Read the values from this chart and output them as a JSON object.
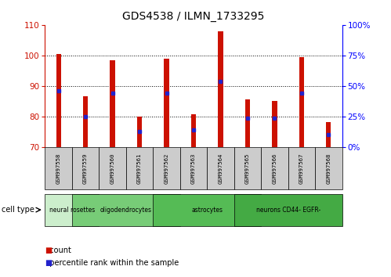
{
  "title": "GDS4538 / ILMN_1733295",
  "samples": [
    "GSM997558",
    "GSM997559",
    "GSM997560",
    "GSM997561",
    "GSM997562",
    "GSM997563",
    "GSM997564",
    "GSM997565",
    "GSM997566",
    "GSM997567",
    "GSM997568"
  ],
  "count_values": [
    100.5,
    86.5,
    98.5,
    80.0,
    99.0,
    80.8,
    108.0,
    85.5,
    85.0,
    99.5,
    78.0
  ],
  "percentile_values": [
    88.5,
    80.0,
    87.5,
    75.0,
    87.5,
    75.5,
    91.5,
    79.5,
    79.5,
    87.5,
    74.0
  ],
  "ylim": [
    70,
    110
  ],
  "yticks_left": [
    70,
    80,
    90,
    100,
    110
  ],
  "bar_color": "#cc1100",
  "percentile_color": "#2222cc",
  "cell_types": [
    {
      "label": "neural rosettes",
      "start": 0,
      "end": 1,
      "color": "#cceecc"
    },
    {
      "label": "oligodendrocytes",
      "start": 1,
      "end": 4,
      "color": "#77cc77"
    },
    {
      "label": "astrocytes",
      "start": 4,
      "end": 7,
      "color": "#55bb55"
    },
    {
      "label": "neurons CD44- EGFR-",
      "start": 7,
      "end": 10,
      "color": "#44aa44"
    }
  ],
  "cell_type_label": "cell type",
  "legend_count_label": "count",
  "legend_percentile_label": "percentile rank within the sample",
  "background_color": "#ffffff",
  "bar_width": 0.18,
  "label_box_color": "#cccccc",
  "spine_color": "#888888"
}
